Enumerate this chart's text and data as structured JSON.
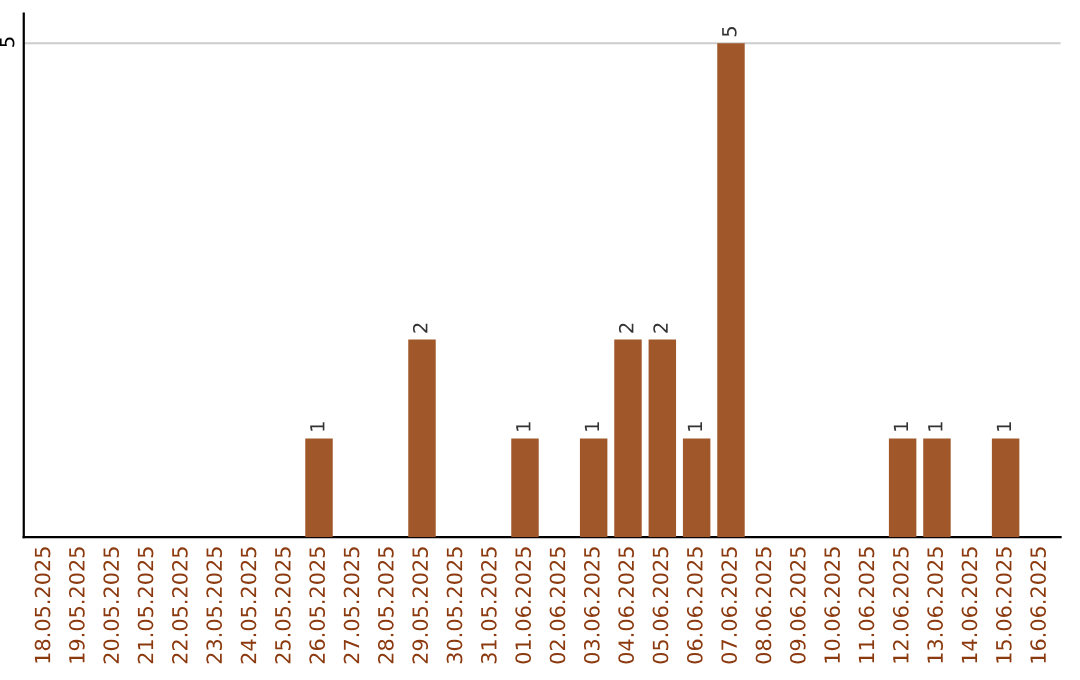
{
  "chart_data": {
    "type": "bar",
    "categories": [
      "18.05.2025",
      "19.05.2025",
      "20.05.2025",
      "21.05.2025",
      "22.05.2025",
      "23.05.2025",
      "24.05.2025",
      "25.05.2025",
      "26.05.2025",
      "27.05.2025",
      "28.05.2025",
      "29.05.2025",
      "30.05.2025",
      "31.05.2025",
      "01.06.2025",
      "02.06.2025",
      "03.06.2025",
      "04.06.2025",
      "05.06.2025",
      "06.06.2025",
      "07.06.2025",
      "08.06.2025",
      "09.06.2025",
      "10.06.2025",
      "11.06.2025",
      "12.06.2025",
      "13.06.2025",
      "14.06.2025",
      "15.06.2025",
      "16.06.2025"
    ],
    "values": [
      null,
      null,
      null,
      null,
      null,
      null,
      null,
      null,
      1,
      null,
      null,
      2,
      null,
      null,
      1,
      null,
      1,
      2,
      2,
      1,
      5,
      null,
      null,
      null,
      null,
      1,
      1,
      null,
      1,
      null
    ],
    "color": "#a0582a",
    "ylim": [
      0,
      5.3
    ],
    "yticks": [
      5
    ],
    "grid": "y",
    "data_labels": true
  }
}
